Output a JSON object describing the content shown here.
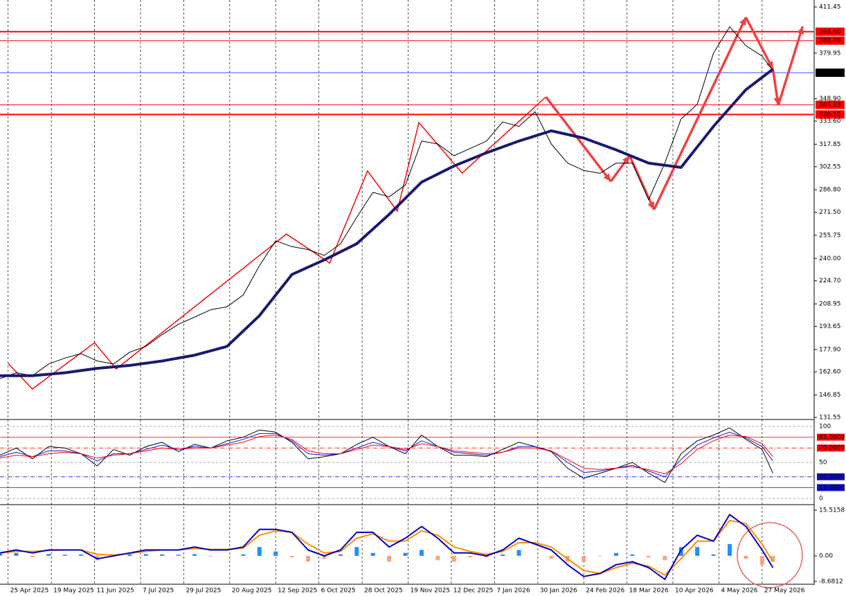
{
  "chart_data": [
    {
      "type": "line",
      "x": [
        0,
        6,
        12,
        18,
        24,
        30,
        36,
        42,
        48,
        54,
        60,
        66,
        72,
        78,
        84,
        90,
        96,
        102,
        108,
        114,
        120,
        126,
        132,
        138,
        144,
        150,
        156,
        162,
        168,
        174,
        180,
        186,
        192,
        198,
        204,
        210,
        216,
        222,
        228,
        234,
        240,
        246,
        252,
        258,
        264,
        270,
        276,
        282,
        286
      ],
      "xlim": [
        0,
        301
      ],
      "ylim": [
        130.6,
        416.2
      ],
      "yticks": [
        411.45,
        379.95,
        {
          "value": 348.9,
          "label": "348.90"
        },
        {
          "value": 333.6,
          "label": "333.60"
        },
        317.85,
        302.55,
        {
          "value": 286.8,
          "label": "286.80"
        },
        {
          "value": 271.5,
          "label": "271.50"
        },
        255.75,
        {
          "value": 240,
          "label": "240.00"
        },
        {
          "value": 224.7,
          "label": "224.70"
        },
        208.95,
        193.65,
        {
          "value": 177.9,
          "label": "177.90"
        },
        {
          "value": 162.6,
          "label": "162.60"
        },
        146.85,
        131.55
      ],
      "series": [
        {
          "color": "#000000",
          "values": [
            158,
            162,
            160,
            168,
            172,
            175,
            170,
            168,
            176,
            180,
            188,
            195,
            200,
            205,
            207,
            215,
            235,
            252,
            248,
            246,
            242,
            250,
            268,
            285,
            282,
            290,
            320,
            318,
            310,
            315,
            320,
            333,
            330,
            340,
            318,
            305,
            300,
            298,
            305,
            305,
            280,
            305,
            335,
            345,
            380,
            398,
            385,
            378,
            368
          ]
        },
        {
          "color": "#191970",
          "x": [
            0,
            12,
            24,
            36,
            48,
            60,
            72,
            84,
            96,
            108,
            120,
            132,
            144,
            156,
            168,
            180,
            192,
            204,
            216,
            228,
            240,
            252,
            264,
            276,
            286
          ],
          "values": [
            160,
            160,
            162,
            165,
            167,
            170,
            174,
            180,
            201,
            229,
            239,
            250,
            270,
            292,
            303,
            312,
            320,
            327,
            322,
            314,
            305,
            302,
            330,
            355,
            369
          ]
        }
      ],
      "zigzag": {
        "color": "#ff0000",
        "x": [
          3,
          12,
          35,
          43,
          106,
          122,
          136,
          147,
          155,
          171,
          202,
          226,
          233,
          242,
          276,
          286,
          288,
          297
        ],
        "values": [
          168.4,
          150.9,
          182.5,
          164.6,
          256.6,
          236.8,
          299.6,
          272.2,
          332.6,
          298.2,
          350.1,
          292.5,
          310,
          273.2,
          404.4,
          369,
          344.4,
          398.2
        ]
      },
      "levels": [
        {
          "value": 394.6,
          "label": "394.60",
          "color": "#ff0000"
        },
        {
          "value": 388.49,
          "label": "388.49",
          "color": "#ff0000"
        },
        {
          "value": 366.61,
          "label": "366.61",
          "color": "#3050ff"
        },
        {
          "value": 344.73,
          "label": "344.73",
          "color": "#ff0000"
        },
        {
          "value": 338.15,
          "label": "338.15",
          "color": "#ff0000"
        }
      ]
    },
    {
      "type": "line",
      "ylim": [
        -7.7,
        107.7
      ],
      "yticks": [
        100,
        {
          "value": 85,
          "label": "85.0000",
          "color": "#ff0000"
        },
        {
          "value": 70,
          "label": "70.0000",
          "color": "#ff0000"
        },
        50,
        {
          "value": 30,
          "label": "30.0000",
          "color": "#1010c0"
        },
        {
          "value": 15,
          "label": "15.0000",
          "color": "#1010c0"
        },
        0
      ],
      "series": [
        {
          "color": "#000000",
          "values": [
            60,
            70,
            55,
            72,
            70,
            62,
            45,
            68,
            60,
            72,
            78,
            65,
            75,
            70,
            80,
            85,
            95,
            92,
            78,
            55,
            58,
            62,
            75,
            85,
            72,
            62,
            88,
            72,
            60,
            60,
            58,
            68,
            78,
            72,
            65,
            42,
            28,
            35,
            42,
            50,
            35,
            22,
            62,
            80,
            88,
            98,
            82,
            68,
            35
          ]
        },
        {
          "color": "#1010e0",
          "values": [
            58,
            64,
            58,
            66,
            66,
            62,
            52,
            62,
            62,
            68,
            74,
            68,
            72,
            70,
            76,
            82,
            90,
            90,
            80,
            62,
            60,
            62,
            70,
            78,
            72,
            66,
            80,
            72,
            64,
            62,
            60,
            64,
            72,
            72,
            66,
            50,
            36,
            38,
            42,
            46,
            38,
            30,
            54,
            74,
            84,
            92,
            84,
            72,
            52
          ]
        },
        {
          "color": "#ff0000",
          "values": [
            56,
            60,
            58,
            62,
            64,
            62,
            56,
            60,
            62,
            66,
            70,
            68,
            70,
            70,
            74,
            78,
            86,
            88,
            82,
            66,
            62,
            62,
            68,
            74,
            72,
            68,
            76,
            72,
            66,
            64,
            62,
            64,
            70,
            70,
            66,
            54,
            42,
            40,
            42,
            44,
            40,
            34,
            48,
            68,
            80,
            88,
            86,
            76,
            58
          ]
        }
      ]
    },
    {
      "type": "combo",
      "ylim": [
        -9.4,
        17.16
      ],
      "yticks": [
        15.5158,
        {
          "value": 0,
          "label": "0.00"
        },
        -8.6812
      ],
      "histogram": {
        "up_color": "#1e90ff",
        "down_color": "#f4a582",
        "values": [
          0.8,
          1,
          -0.5,
          0.6,
          0.4,
          0.5,
          -1.5,
          -0.3,
          0.5,
          0.6,
          0.5,
          0.4,
          0.6,
          -0.2,
          0,
          0.5,
          3,
          1.5,
          -0.5,
          -2,
          -1,
          0.5,
          3,
          1,
          -2,
          1,
          2,
          -1.5,
          -2,
          -0.5,
          -0.5,
          0.5,
          2,
          0,
          -1,
          -2,
          -2,
          -0.2,
          1,
          0.5,
          -0.5,
          -1.5,
          3,
          3,
          0.5,
          4,
          -1,
          -3,
          -2
        ]
      },
      "series": [
        {
          "color": "#ff8c00",
          "values": [
            1,
            1.5,
            1.5,
            1.8,
            2,
            2,
            0.5,
            0.3,
            0.8,
            1.5,
            2,
            2,
            2.5,
            2.2,
            2.2,
            2.6,
            7,
            8.5,
            8,
            4,
            1,
            1.5,
            6,
            7.5,
            5,
            5,
            8.5,
            7,
            3,
            1.5,
            0.5,
            1.5,
            4.5,
            4.5,
            3,
            -1,
            -5,
            -6,
            -4,
            -2.5,
            -3.5,
            -6.5,
            -1,
            5,
            5,
            12,
            11,
            4,
            -2
          ]
        },
        {
          "color": "#0000c0",
          "values": [
            1,
            2,
            1,
            2,
            2,
            2,
            -1,
            0,
            1,
            2,
            2,
            2,
            3,
            2,
            2,
            3,
            9,
            9,
            8,
            2,
            0,
            2,
            8,
            8,
            3,
            6,
            10,
            6,
            1,
            1,
            0,
            2,
            6,
            4,
            2,
            -3,
            -7,
            -6,
            -3,
            -2,
            -4,
            -8,
            2,
            7,
            5,
            14,
            10,
            2,
            -4
          ]
        }
      ],
      "xticks": [
        {
          "value": 3,
          "label": "25 Apr 2025"
        },
        {
          "value": 19,
          "label": "19 May 2025"
        },
        {
          "value": 35,
          "label": "11 Jun 2025"
        },
        {
          "value": 52,
          "label": "7 Jul 2025"
        },
        {
          "value": 68,
          "label": "29 Jul 2025"
        },
        {
          "value": 85,
          "label": "20 Aug 2025"
        },
        {
          "value": 102,
          "label": "12 Sep 2025"
        },
        {
          "value": 118,
          "label": "6 Oct 2025"
        },
        {
          "value": 134,
          "label": "28 Oct 2025"
        },
        {
          "value": 151,
          "label": "19 Nov 2025"
        },
        {
          "value": 167,
          "label": "12 Dec 2025"
        },
        {
          "value": 183,
          "label": "7 Jan 2026"
        },
        {
          "value": 199,
          "label": "30 Jan 2026"
        },
        {
          "value": 216,
          "label": "24 Feb 2026"
        },
        {
          "value": 232,
          "label": "18 Mar 2026"
        },
        {
          "value": 249,
          "label": "10 Apr 2026"
        },
        {
          "value": 266,
          "label": "4 May 2026"
        },
        {
          "value": 282,
          "label": "27 May 2026"
        }
      ]
    }
  ]
}
